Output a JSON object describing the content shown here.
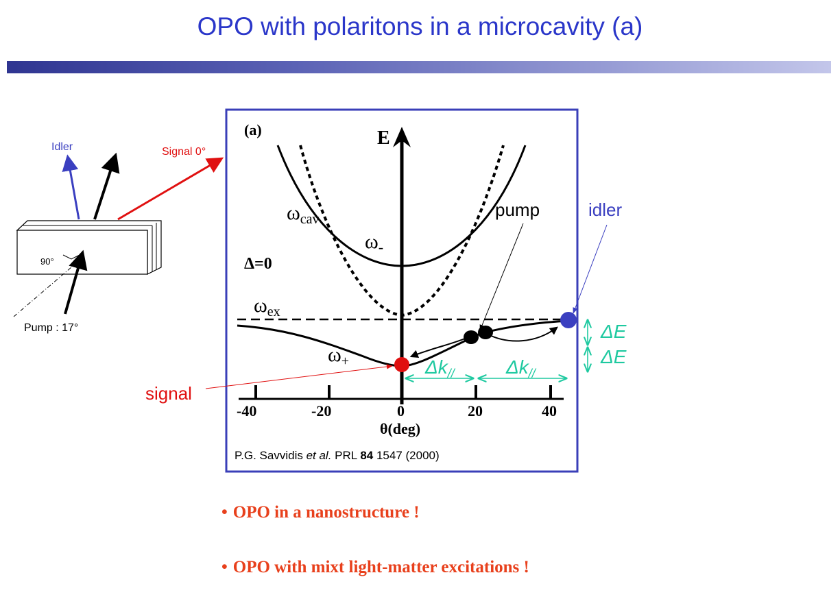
{
  "title": "OPO with polaritons in a microcavity (a)",
  "colors": {
    "title": "#2a36c9",
    "frame": "#3a3fb8",
    "idler": "#3a3fc0",
    "signal": "#e01010",
    "accent": "#1ec9a0",
    "bullets": "#e8401c"
  },
  "left_diagram": {
    "idler_label": "Idler",
    "signal_label": "Signal 0°",
    "angle_label": "90°",
    "pump_label": "Pump : 17°"
  },
  "plot": {
    "panel_label": "(a)",
    "y_axis_label": "E",
    "x_axis_label": "θ(deg)",
    "detuning_label": "Δ=0",
    "curves": {
      "cavity": "ω",
      "cavity_sub": "cav",
      "upper": "ω",
      "upper_sub": "-",
      "exciton": "ω",
      "exciton_sub": "ex",
      "lower": "ω",
      "lower_sub": "+"
    },
    "x_ticks": [
      "-40",
      "-20",
      "0",
      "20",
      "40"
    ],
    "citation": {
      "pre": "P.G. Savvidis ",
      "etal": "et al.",
      "journal": " PRL ",
      "volume": "84",
      "rest": " 1547 (2000)"
    }
  },
  "annotations": {
    "pump": "pump",
    "idler": "idler",
    "signal": "signal",
    "delta_k_1": "Δk",
    "delta_k_2": "Δk",
    "delta_k_sub": "//",
    "delta_e_1": "ΔE",
    "delta_e_2": "ΔE"
  },
  "bullets": [
    "OPO in a nanostructure !",
    "OPO with mixt light-matter excitations !"
  ]
}
